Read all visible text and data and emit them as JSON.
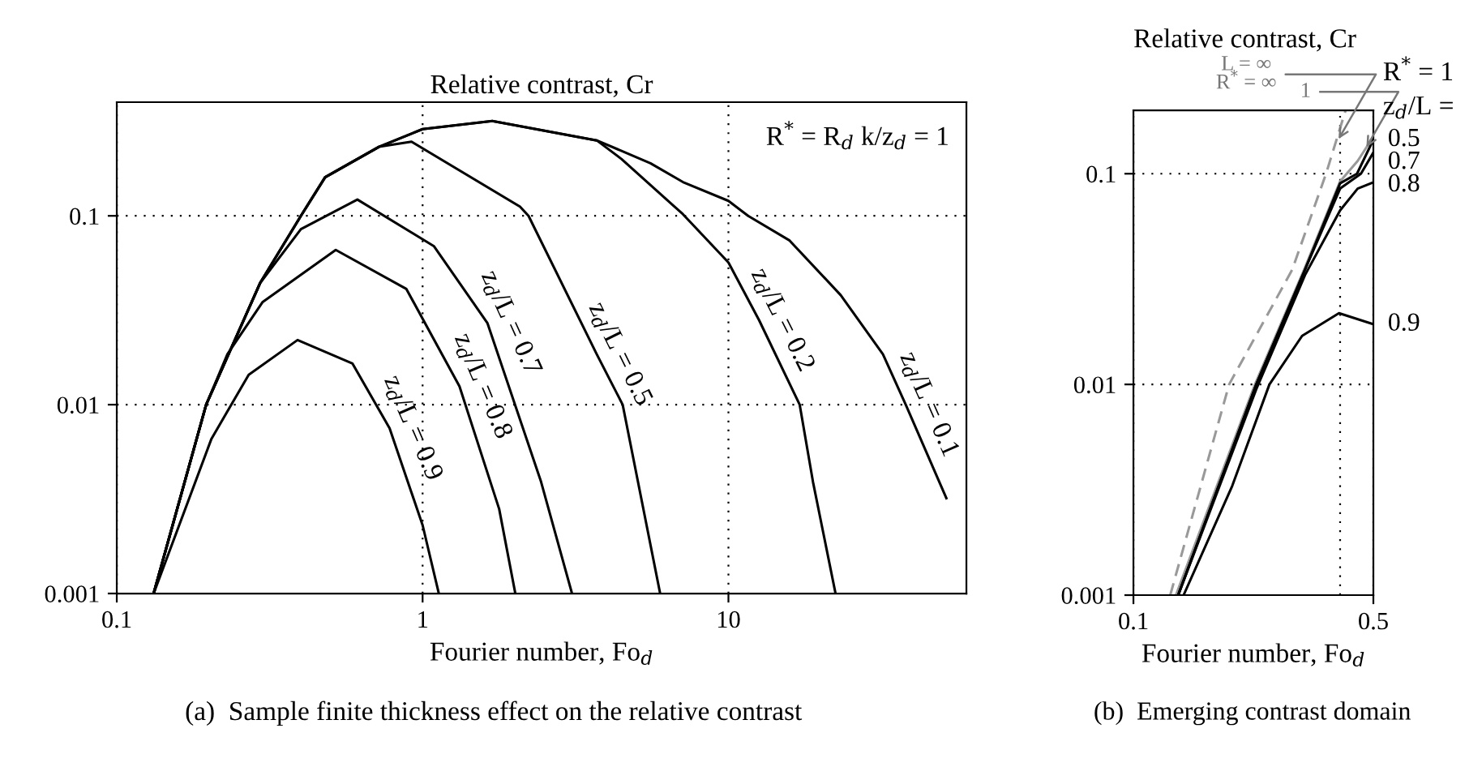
{
  "chart_data": [
    {
      "type": "line",
      "title": "Relative contrast, Cr",
      "xlabel": "Fourier number, Fo$_{d}$",
      "log": "xy",
      "grid": true,
      "xlim": [
        0.1,
        60
      ],
      "ylim": [
        0.001,
        0.4
      ],
      "xticks": [
        0.1,
        1,
        10
      ],
      "yticks": [
        0.001,
        0.01,
        0.1
      ],
      "series": [
        {
          "name": "z$_{d}$/L = 0.9",
          "color": "#000000",
          "x": [
            0.132,
            0.204,
            0.27,
            0.39,
            0.59,
            0.78,
            1.0,
            1.13
          ],
          "values": [
            0.001,
            0.0066,
            0.0144,
            0.022,
            0.0165,
            0.0075,
            0.0023,
            0.001
          ]
        },
        {
          "name": "z$_{d}$/L = 0.8",
          "color": "#000000",
          "x": [
            0.132,
            0.196,
            0.23,
            0.3,
            0.52,
            0.885,
            1.32,
            1.78,
            2.01
          ],
          "values": [
            0.001,
            0.01,
            0.0185,
            0.035,
            0.066,
            0.041,
            0.0125,
            0.0028,
            0.001
          ]
        },
        {
          "name": "z$_{d}$/L = 0.7",
          "color": "#000000",
          "x": [
            0.132,
            0.196,
            0.294,
            0.4,
            0.612,
            1.09,
            1.63,
            2.44,
            3.08
          ],
          "values": [
            0.001,
            0.01,
            0.044,
            0.085,
            0.122,
            0.069,
            0.027,
            0.0039,
            0.001
          ]
        },
        {
          "name": "z$_{d}$/L = 0.5",
          "color": "#000000",
          "x": [
            0.132,
            0.196,
            0.294,
            0.4,
            0.48,
            0.72,
            0.92,
            2.08,
            2.22,
            3.71,
            4.51,
            5.98
          ],
          "values": [
            0.001,
            0.01,
            0.044,
            0.1,
            0.16,
            0.232,
            0.247,
            0.112,
            0.1,
            0.0185,
            0.01,
            0.001
          ]
        },
        {
          "name": "z$_{d}$/L = 0.2",
          "color": "#000000",
          "x": [
            0.132,
            0.196,
            0.294,
            0.4,
            0.48,
            0.72,
            1.0,
            1.69,
            3.71,
            4.47,
            7.1,
            10,
            12.6,
            17.1,
            18.9,
            22.4
          ],
          "values": [
            0.001,
            0.01,
            0.044,
            0.1,
            0.16,
            0.232,
            0.288,
            0.318,
            0.251,
            0.2,
            0.102,
            0.0566,
            0.028,
            0.01,
            0.0039,
            0.001
          ]
        },
        {
          "name": "z$_{d}$/L = 0.1",
          "color": "#000000",
          "x": [
            0.132,
            0.196,
            0.294,
            0.4,
            0.48,
            0.72,
            1.0,
            1.69,
            3.71,
            5.56,
            7.1,
            10,
            11.6,
            15.85,
            23.3,
            32,
            38,
            51.6
          ],
          "values": [
            0.001,
            0.01,
            0.044,
            0.1,
            0.16,
            0.232,
            0.288,
            0.318,
            0.251,
            0.19,
            0.151,
            0.12,
            0.1,
            0.074,
            0.038,
            0.0185,
            0.01,
            0.0032
          ]
        }
      ],
      "annotations": [
        "R$^{*}$ = R$_{d}$ k/z$_{d}$ = 1",
        "(a)  Sample finite thickness effect on the relative contrast"
      ]
    },
    {
      "type": "line",
      "title": "Relative contrast, Cr",
      "xlabel": "Fourier number, Fo$_{d}$",
      "log": "xy",
      "grid": true,
      "xlim": [
        0.1,
        0.5
      ],
      "ylim": [
        0.001,
        0.2
      ],
      "xticks": [
        0.1,
        0.5
      ],
      "yticks": [
        0.001,
        0.01,
        0.1
      ],
      "ref_lines": [
        {
          "axis": "x",
          "value": 0.4,
          "color": "#000000",
          "line_style": "dotted"
        }
      ],
      "series": [
        {
          "color": "#999999",
          "line_style": "dashed",
          "x": [
            0.128,
            0.19,
            0.29,
            0.364,
            0.415
          ],
          "values": [
            0.001,
            0.01,
            0.035,
            0.1,
            0.2
          ]
        },
        {
          "color": "#999999",
          "x": [
            0.133,
            0.226,
            0.314,
            0.4,
            0.45,
            0.5
          ],
          "values": [
            0.001,
            0.01,
            0.035,
            0.092,
            0.115,
            0.15
          ]
        },
        {
          "name": "0.5",
          "color": "#000000",
          "x": [
            0.135,
            0.228,
            0.316,
            0.4,
            0.448,
            0.5
          ],
          "values": [
            0.001,
            0.01,
            0.035,
            0.09,
            0.1,
            0.145
          ]
        },
        {
          "name": "0.7",
          "color": "#000000",
          "x": [
            0.135,
            0.228,
            0.316,
            0.4,
            0.46,
            0.5
          ],
          "values": [
            0.001,
            0.01,
            0.035,
            0.085,
            0.1,
            0.126
          ]
        },
        {
          "name": "0.8",
          "color": "#000000",
          "x": [
            0.135,
            0.228,
            0.316,
            0.4,
            0.45,
            0.5
          ],
          "values": [
            0.001,
            0.0095,
            0.033,
            0.067,
            0.085,
            0.091
          ]
        },
        {
          "name": "0.9",
          "color": "#000000",
          "x": [
            0.14,
            0.194,
            0.249,
            0.31,
            0.397,
            0.5
          ],
          "values": [
            0.001,
            0.0033,
            0.01,
            0.017,
            0.0218,
            0.0193
          ]
        }
      ],
      "annotations": [
        {
          "text": "L = ∞\nR$^{*}$ = ∞",
          "x": 0.39,
          "y": 0.14
        },
        {
          "text": "1",
          "x": 0.47,
          "y": 0.128
        },
        "R$^{*}$ = 1",
        "z$_{d}$/L =",
        "(b)  Emerging contrast domain"
      ]
    }
  ]
}
